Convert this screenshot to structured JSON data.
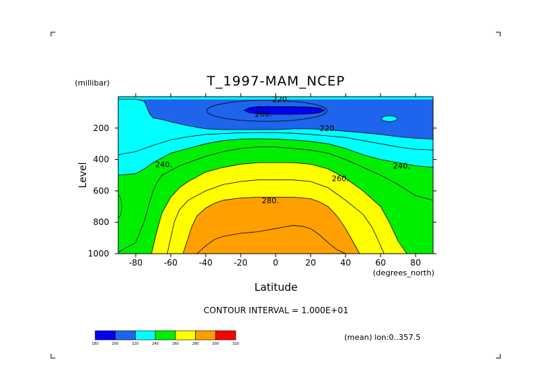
{
  "chart_data": {
    "type": "heatmap",
    "subtype": "filled-contour",
    "title": "T_1997-MAM_NCEP",
    "xlabel": "Latitude",
    "x_units": "(degrees_north)",
    "ylabel": "Level",
    "y_units": "(millibar)",
    "xlim": [
      -90,
      90
    ],
    "ylim": [
      1000,
      0
    ],
    "y_reversed": true,
    "x_ticks": [
      "-80",
      "-60",
      "-40",
      "-20",
      "0",
      "20",
      "40",
      "60",
      "80"
    ],
    "x_tick_values": [
      -80,
      -60,
      -40,
      -20,
      0,
      20,
      40,
      60,
      80
    ],
    "y_ticks": [
      "200",
      "400",
      "600",
      "800",
      "1000"
    ],
    "y_tick_values": [
      200,
      400,
      600,
      800,
      1000
    ],
    "contour_interval_text": "CONTOUR INTERVAL = 1.000E+01",
    "mean_text": "(mean) lon:0..357.5",
    "contour_labels": [
      {
        "text": "200.",
        "lat": -7,
        "p": 110
      },
      {
        "text": "220.",
        "lat": 3,
        "p": 15
      },
      {
        "text": "220.",
        "lat": 30,
        "p": 200
      },
      {
        "text": "240.",
        "lat": -64,
        "p": 430
      },
      {
        "text": "240.",
        "lat": 72,
        "p": 440
      },
      {
        "text": "260.",
        "lat": 37,
        "p": 520
      },
      {
        "text": "280.",
        "lat": -3,
        "p": 660
      }
    ],
    "colorbar": {
      "levels": [
        "180",
        "200",
        "220",
        "240",
        "260",
        "280",
        "300",
        "320"
      ],
      "colors": [
        "#0000ee",
        "#1e64ec",
        "#00ffff",
        "#00ee00",
        "#ffff00",
        "#ffa000",
        "#ff0000"
      ]
    },
    "series": [
      {
        "name": "T=200",
        "lat": [
          -10,
          -5,
          0,
          5,
          10,
          15,
          20,
          25,
          28,
          25,
          20,
          15,
          10,
          5,
          0,
          -5,
          -10,
          -15,
          -18,
          -15
        ],
        "p": [
          64,
          63,
          63,
          64,
          64,
          65,
          67,
          72,
          87,
          102,
          108,
          111,
          112,
          112,
          112,
          111,
          108,
          103,
          87,
          70
        ]
      },
      {
        "name": "T=220",
        "lat": [
          -90,
          -80,
          -75,
          -72,
          -70,
          -65,
          -60,
          -50,
          -40,
          -30,
          -20,
          -10,
          0,
          10,
          20,
          30,
          40,
          50,
          60,
          70,
          80,
          90
        ],
        "p": [
          15,
          15,
          30,
          110,
          135,
          145,
          160,
          185,
          205,
          210,
          210,
          210,
          210,
          205,
          205,
          210,
          220,
          230,
          240,
          255,
          265,
          270
        ]
      },
      {
        "name": "T=230",
        "lat": [
          -90,
          -80,
          -70,
          -60,
          -50,
          -40,
          -30,
          -20,
          -10,
          0,
          10,
          20,
          30,
          40,
          50,
          60,
          70,
          80,
          90
        ],
        "p": [
          370,
          350,
          310,
          275,
          255,
          240,
          235,
          230,
          228,
          230,
          233,
          240,
          250,
          260,
          280,
          300,
          320,
          335,
          340
        ]
      },
      {
        "name": "T=240",
        "lat": [
          -90,
          -80,
          -75,
          -70,
          -65,
          -60,
          -50,
          -40,
          -30,
          -20,
          -10,
          0,
          10,
          20,
          30,
          40,
          50,
          60,
          70,
          80,
          90
        ],
        "p": [
          500,
          490,
          460,
          420,
          390,
          360,
          330,
          300,
          280,
          270,
          268,
          270,
          275,
          285,
          300,
          330,
          370,
          400,
          420,
          440,
          450
        ]
      },
      {
        "name": "T=250",
        "lat": [
          -90,
          -80,
          -75,
          -72,
          -70,
          -68,
          -65,
          -60,
          -55,
          -50,
          -40,
          -30,
          -20,
          -10,
          0,
          10,
          20,
          30,
          40,
          50,
          60,
          70,
          80,
          90
        ],
        "p": [
          990,
          930,
          790,
          670,
          600,
          550,
          500,
          470,
          440,
          420,
          380,
          350,
          330,
          320,
          320,
          330,
          340,
          360,
          400,
          450,
          500,
          560,
          630,
          660
        ]
      },
      {
        "name": "T=260",
        "lat": [
          -71,
          -68,
          -65,
          -60,
          -55,
          -50,
          -40,
          -30,
          -20,
          -10,
          0,
          10,
          20,
          30,
          40,
          50,
          60,
          65,
          70,
          75
        ],
        "p": [
          1000,
          860,
          740,
          640,
          580,
          540,
          480,
          450,
          430,
          420,
          420,
          420,
          430,
          460,
          520,
          600,
          700,
          800,
          920,
          1000
        ]
      },
      {
        "name": "T=270",
        "lat": [
          -62,
          -60,
          -58,
          -55,
          -50,
          -40,
          -30,
          -20,
          -10,
          0,
          10,
          20,
          30,
          40,
          50,
          55,
          58,
          62
        ],
        "p": [
          1000,
          900,
          800,
          720,
          660,
          600,
          560,
          540,
          530,
          530,
          530,
          540,
          580,
          660,
          750,
          830,
          900,
          1000
        ]
      },
      {
        "name": "T=280",
        "lat": [
          -53,
          -50,
          -48,
          -45,
          -40,
          -35,
          -30,
          -20,
          -10,
          0,
          10,
          20,
          25,
          30,
          35,
          40,
          43,
          46,
          48
        ],
        "p": [
          1000,
          900,
          830,
          760,
          710,
          680,
          660,
          645,
          640,
          640,
          640,
          650,
          670,
          700,
          760,
          840,
          900,
          960,
          1000
        ]
      },
      {
        "name": "T=290",
        "lat": [
          -45,
          -40,
          -35,
          -30,
          -25,
          -20,
          -15,
          -10,
          -5,
          0,
          5,
          10,
          15,
          20,
          25,
          30,
          35,
          40
        ],
        "p": [
          1000,
          950,
          910,
          890,
          880,
          870,
          865,
          860,
          850,
          840,
          830,
          820,
          825,
          840,
          880,
          930,
          975,
          1000
        ]
      }
    ]
  }
}
